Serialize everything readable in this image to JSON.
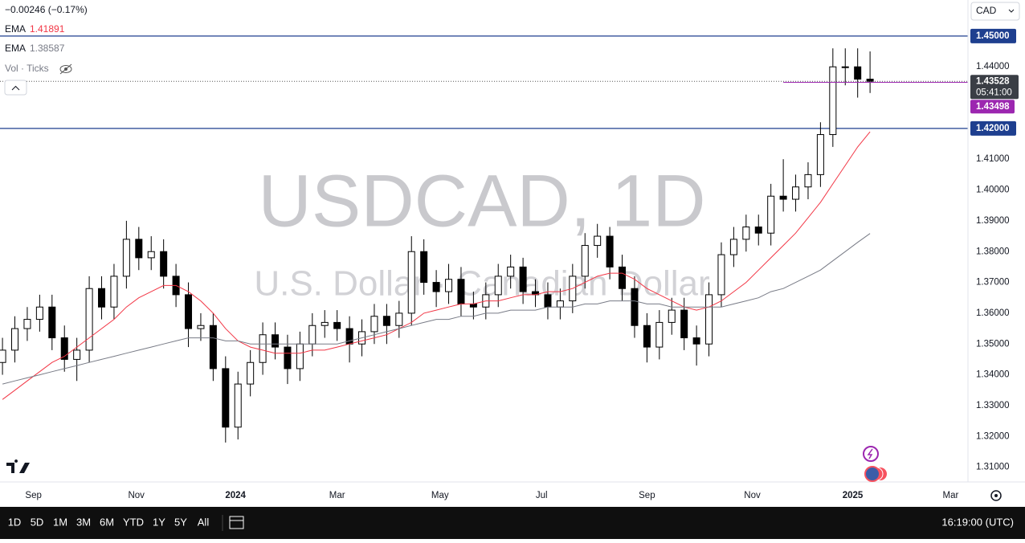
{
  "chart_data": {
    "type": "candlestick",
    "title": "USDCAD, 1D",
    "subtitle": "U.S. Dollar · Canadian Dollar",
    "open": [
      1.344,
      1.348,
      1.355,
      1.358,
      1.362,
      1.352,
      1.345,
      1.348,
      1.368,
      1.362,
      1.372,
      1.384,
      1.378,
      1.38,
      1.372,
      1.366,
      1.355,
      1.356,
      1.342,
      1.323,
      1.337,
      1.344,
      1.353,
      1.349,
      1.342,
      1.35,
      1.356,
      1.357,
      1.355,
      1.35,
      1.354,
      1.359,
      1.356,
      1.36,
      1.38,
      1.37,
      1.367,
      1.371,
      1.363,
      1.362,
      1.366,
      1.372,
      1.375,
      1.367,
      1.366,
      1.362,
      1.364,
      1.372,
      1.382,
      1.385,
      1.375,
      1.368,
      1.356,
      1.349,
      1.357,
      1.361,
      1.352,
      1.35,
      1.366,
      1.379,
      1.384,
      1.388,
      1.386,
      1.398,
      1.397,
      1.401,
      1.405,
      1.418,
      1.44,
      1.44,
      1.436
    ],
    "high": [
      1.352,
      1.359,
      1.362,
      1.366,
      1.366,
      1.356,
      1.352,
      1.372,
      1.372,
      1.376,
      1.39,
      1.388,
      1.385,
      1.384,
      1.376,
      1.37,
      1.36,
      1.36,
      1.346,
      1.341,
      1.348,
      1.357,
      1.357,
      1.353,
      1.354,
      1.36,
      1.361,
      1.361,
      1.359,
      1.358,
      1.363,
      1.363,
      1.364,
      1.385,
      1.384,
      1.374,
      1.376,
      1.375,
      1.367,
      1.37,
      1.376,
      1.379,
      1.378,
      1.371,
      1.37,
      1.368,
      1.376,
      1.386,
      1.389,
      1.388,
      1.379,
      1.372,
      1.36,
      1.361,
      1.365,
      1.365,
      1.356,
      1.37,
      1.383,
      1.388,
      1.392,
      1.392,
      1.402,
      1.41,
      1.405,
      1.409,
      1.422,
      1.446,
      1.446,
      1.446,
      1.445
    ],
    "low": [
      1.34,
      1.344,
      1.351,
      1.354,
      1.348,
      1.341,
      1.338,
      1.344,
      1.358,
      1.358,
      1.368,
      1.374,
      1.374,
      1.368,
      1.362,
      1.349,
      1.351,
      1.338,
      1.318,
      1.319,
      1.333,
      1.34,
      1.345,
      1.337,
      1.338,
      1.346,
      1.352,
      1.351,
      1.344,
      1.346,
      1.35,
      1.35,
      1.352,
      1.356,
      1.366,
      1.362,
      1.363,
      1.359,
      1.358,
      1.358,
      1.362,
      1.368,
      1.363,
      1.362,
      1.358,
      1.358,
      1.36,
      1.368,
      1.378,
      1.371,
      1.364,
      1.352,
      1.344,
      1.345,
      1.353,
      1.348,
      1.343,
      1.346,
      1.362,
      1.375,
      1.38,
      1.382,
      1.382,
      1.393,
      1.393,
      1.397,
      1.401,
      1.414,
      1.434,
      1.43,
      1.4315
    ],
    "close": [
      1.348,
      1.355,
      1.358,
      1.362,
      1.352,
      1.345,
      1.348,
      1.368,
      1.362,
      1.372,
      1.384,
      1.378,
      1.38,
      1.372,
      1.366,
      1.355,
      1.356,
      1.342,
      1.323,
      1.337,
      1.344,
      1.353,
      1.349,
      1.342,
      1.35,
      1.356,
      1.357,
      1.355,
      1.35,
      1.354,
      1.359,
      1.356,
      1.36,
      1.38,
      1.37,
      1.367,
      1.371,
      1.363,
      1.362,
      1.366,
      1.372,
      1.375,
      1.367,
      1.366,
      1.362,
      1.364,
      1.372,
      1.382,
      1.385,
      1.375,
      1.368,
      1.356,
      1.349,
      1.357,
      1.361,
      1.352,
      1.35,
      1.366,
      1.379,
      1.384,
      1.388,
      1.386,
      1.398,
      1.397,
      1.401,
      1.405,
      1.418,
      1.44,
      1.44,
      1.436,
      1.43528
    ],
    "series": [
      {
        "name": "EMA",
        "color": "#f23645",
        "values": [
          1.332,
          1.335,
          1.338,
          1.341,
          1.344,
          1.346,
          1.349,
          1.352,
          1.355,
          1.358,
          1.362,
          1.365,
          1.367,
          1.369,
          1.369,
          1.367,
          1.364,
          1.36,
          1.355,
          1.351,
          1.349,
          1.348,
          1.347,
          1.347,
          1.347,
          1.348,
          1.348,
          1.349,
          1.35,
          1.351,
          1.352,
          1.353,
          1.355,
          1.357,
          1.36,
          1.361,
          1.362,
          1.363,
          1.363,
          1.364,
          1.364,
          1.365,
          1.366,
          1.366,
          1.367,
          1.367,
          1.368,
          1.37,
          1.372,
          1.373,
          1.373,
          1.371,
          1.368,
          1.366,
          1.364,
          1.362,
          1.361,
          1.362,
          1.364,
          1.367,
          1.37,
          1.374,
          1.378,
          1.382,
          1.386,
          1.391,
          1.396,
          1.402,
          1.408,
          1.414,
          1.41891
        ]
      },
      {
        "name": "EMA",
        "color": "#787b86",
        "values": [
          1.337,
          1.338,
          1.339,
          1.34,
          1.341,
          1.342,
          1.343,
          1.344,
          1.345,
          1.346,
          1.347,
          1.348,
          1.349,
          1.35,
          1.351,
          1.352,
          1.352,
          1.352,
          1.351,
          1.351,
          1.35,
          1.35,
          1.35,
          1.35,
          1.35,
          1.35,
          1.35,
          1.35,
          1.351,
          1.352,
          1.353,
          1.354,
          1.355,
          1.356,
          1.357,
          1.358,
          1.358,
          1.359,
          1.359,
          1.36,
          1.36,
          1.361,
          1.361,
          1.361,
          1.362,
          1.362,
          1.362,
          1.363,
          1.363,
          1.364,
          1.364,
          1.364,
          1.363,
          1.363,
          1.362,
          1.362,
          1.362,
          1.362,
          1.362,
          1.363,
          1.364,
          1.365,
          1.367,
          1.368,
          1.37,
          1.372,
          1.374,
          1.377,
          1.38,
          1.383,
          1.38587
        ]
      }
    ],
    "ylim": [
      1.3052,
      1.4617
    ],
    "yticks": [
      {
        "value": 1.31,
        "label": "1.31000"
      },
      {
        "value": 1.32,
        "label": "1.32000"
      },
      {
        "value": 1.33,
        "label": "1.33000"
      },
      {
        "value": 1.34,
        "label": "1.34000"
      },
      {
        "value": 1.35,
        "label": "1.35000"
      },
      {
        "value": 1.36,
        "label": "1.36000"
      },
      {
        "value": 1.37,
        "label": "1.37000"
      },
      {
        "value": 1.38,
        "label": "1.38000"
      },
      {
        "value": 1.39,
        "label": "1.39000"
      },
      {
        "value": 1.4,
        "label": "1.40000"
      },
      {
        "value": 1.41,
        "label": "1.41000"
      },
      {
        "value": 1.44,
        "label": "1.44000"
      }
    ],
    "xlim": [
      -0.2,
      77.9
    ],
    "xticks": [
      {
        "value": 2.5,
        "label": "Sep"
      },
      {
        "value": 10.8,
        "label": "Nov"
      },
      {
        "value": 18.8,
        "label": "2024"
      },
      {
        "value": 27.0,
        "label": "Mar"
      },
      {
        "value": 35.3,
        "label": "May"
      },
      {
        "value": 43.5,
        "label": "Jul"
      },
      {
        "value": 52.0,
        "label": "Sep"
      },
      {
        "value": 60.5,
        "label": "Nov"
      },
      {
        "value": 68.6,
        "label": "2025"
      },
      {
        "value": 76.5,
        "label": "Mar"
      }
    ],
    "hlines": [
      {
        "value": 1.45,
        "label": "1.45000",
        "color": "#1e3f8f"
      },
      {
        "value": 1.42,
        "label": "1.42000",
        "color": "#1e3f8f"
      }
    ],
    "bid": {
      "value": 1.43498,
      "label": "1.43498",
      "color": "#9c27b0"
    },
    "countdown": "05:41:00",
    "grid": false
  },
  "ui": {
    "change": "−0.00246 (−0.17%)",
    "volume": "Vol · Ticks",
    "currency": "CAD",
    "ranges": [
      "1D",
      "5D",
      "1M",
      "3M",
      "6M",
      "YTD",
      "1Y",
      "5Y",
      "All"
    ],
    "clock": "16:19:00 (UTC)"
  }
}
